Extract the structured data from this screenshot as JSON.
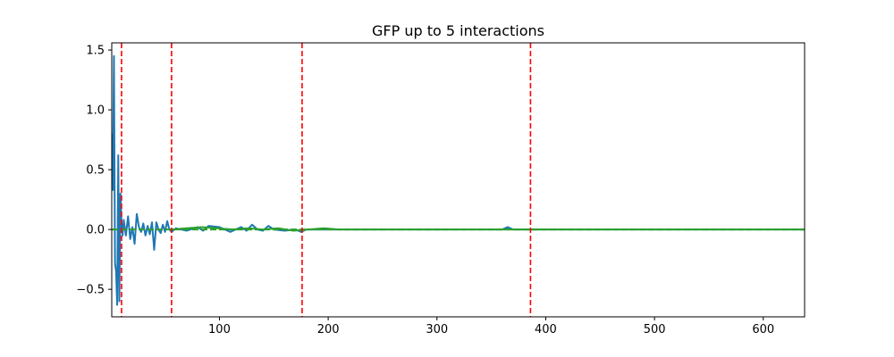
{
  "chart_data": {
    "type": "line",
    "title": "GFP up to 5 interactions",
    "xlabel": "",
    "ylabel": "",
    "xlim": [
      1,
      638
    ],
    "ylim": [
      -0.73,
      1.56
    ],
    "x_ticks": [
      100,
      200,
      300,
      400,
      500,
      600
    ],
    "y_ticks": [
      -0.5,
      0.0,
      0.5,
      1.0,
      1.5
    ],
    "x_tick_labels": [
      "100",
      "200",
      "300",
      "400",
      "500",
      "600"
    ],
    "y_tick_labels": [
      "−0.5",
      "0.0",
      "0.5",
      "1.0",
      "1.5"
    ],
    "grid": false,
    "legend": "none",
    "series": [
      {
        "color": "#1f77b4",
        "x": [
          1,
          2,
          3,
          4,
          5,
          6,
          7,
          8,
          9,
          10,
          11,
          12,
          14,
          16,
          18,
          20,
          22,
          24,
          26,
          28,
          30,
          32,
          34,
          36,
          38,
          40,
          42,
          44,
          46,
          48,
          50,
          52,
          54,
          56,
          60,
          70,
          80,
          85,
          90,
          100,
          110,
          120,
          125,
          130,
          135,
          140,
          145,
          150,
          160,
          170,
          175,
          180,
          190,
          200,
          250,
          300,
          350,
          360,
          365,
          370,
          380,
          400,
          450,
          500,
          550,
          600,
          638
        ],
        "y": [
          0.8,
          0.33,
          1.45,
          -0.28,
          -0.35,
          -0.63,
          0.62,
          -0.6,
          0.3,
          0.05,
          -0.05,
          0.08,
          -0.05,
          0.11,
          -0.08,
          0.02,
          -0.12,
          0.13,
          0.02,
          -0.02,
          0.05,
          -0.05,
          0.03,
          -0.04,
          0.06,
          -0.17,
          0.06,
          0.0,
          -0.03,
          0.04,
          -0.02,
          0.07,
          0.0,
          -0.02,
          0.01,
          -0.01,
          0.02,
          -0.01,
          0.03,
          0.02,
          -0.02,
          0.02,
          -0.01,
          0.04,
          0.0,
          -0.01,
          0.03,
          0.0,
          -0.01,
          0.0,
          -0.02,
          0.0,
          0.0,
          0.0,
          0.0,
          0.0,
          0.0,
          0.0,
          0.02,
          0.0,
          0.0,
          0.0,
          0.0,
          0.0,
          0.0,
          0.0,
          0.0
        ]
      },
      {
        "color": "#2ca02c",
        "x": [
          56,
          70,
          84,
          98,
          112,
          126,
          140,
          154,
          168,
          182,
          196,
          210,
          230,
          260,
          290,
          320,
          350,
          380,
          410,
          440,
          470,
          500,
          530,
          560,
          590,
          620,
          638
        ],
        "y": [
          0.0,
          0.01,
          0.02,
          0.01,
          0.0,
          0.01,
          0.0,
          0.01,
          -0.01,
          0.0,
          0.01,
          0.0,
          0.0,
          0.0,
          0.0,
          0.0,
          0.0,
          0.0,
          0.0,
          0.0,
          0.0,
          0.0,
          0.0,
          0.0,
          0.0,
          0.0,
          0.0
        ]
      }
    ],
    "hlines": [
      {
        "y": 0.0,
        "style": "dashed",
        "color": "#2ca02c"
      }
    ],
    "vlines": [
      {
        "x": 10,
        "style": "dashed",
        "color": "#ff0000"
      },
      {
        "x": 56,
        "style": "dashed",
        "color": "#ff0000"
      },
      {
        "x": 176,
        "style": "dashed",
        "color": "#ff0000"
      },
      {
        "x": 386,
        "style": "dashed",
        "color": "#ff0000"
      }
    ]
  }
}
